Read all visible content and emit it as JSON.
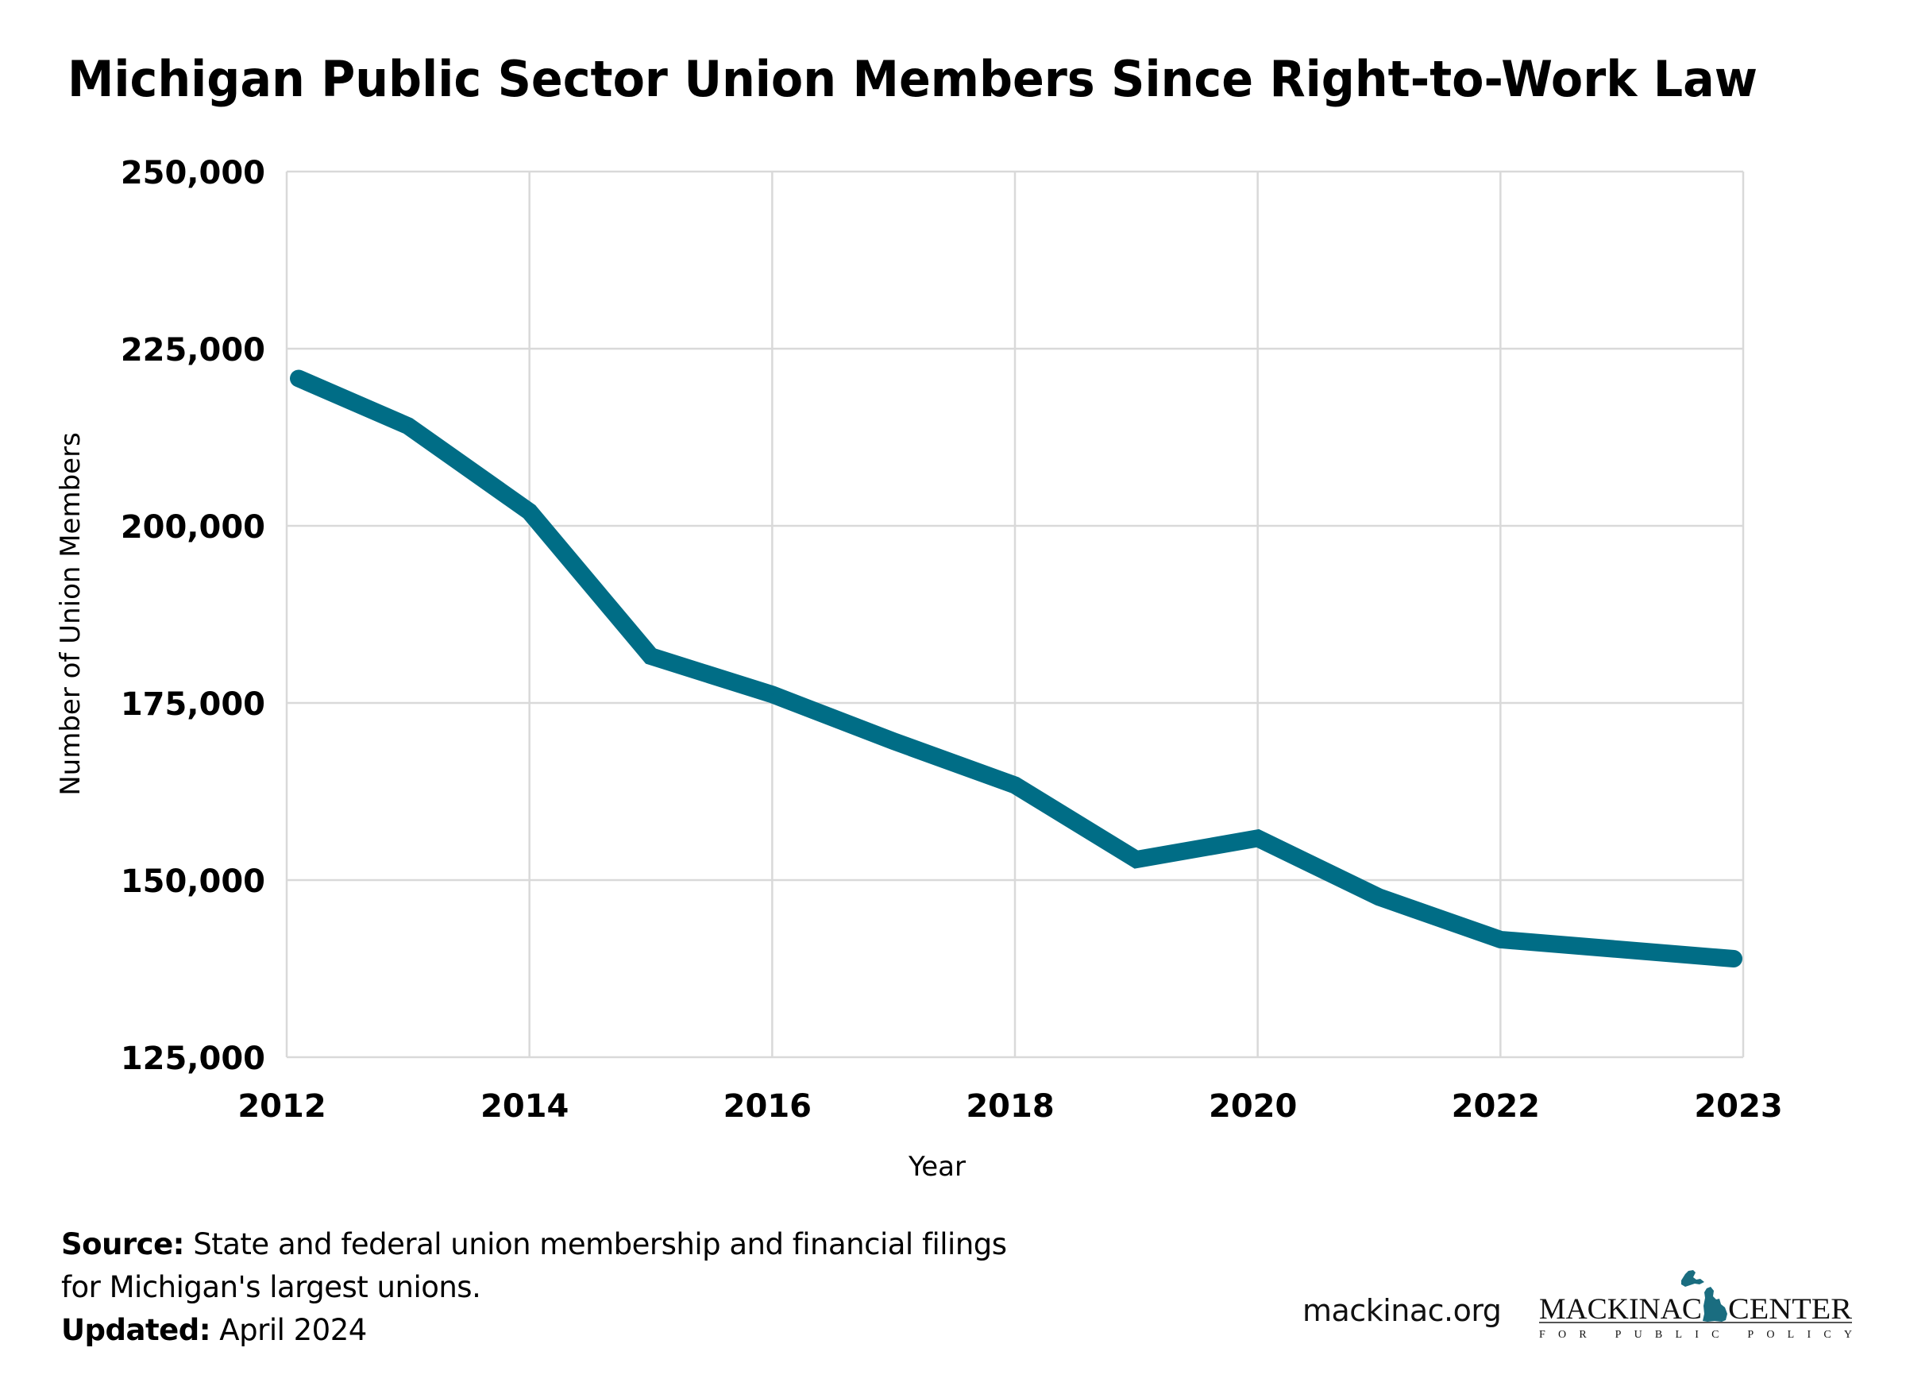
{
  "chart_data": {
    "type": "line",
    "title": "Michigan Public Sector Union Members Since Right-to-Work Law",
    "xlabel": "Year",
    "ylabel": "Number of Union Members",
    "ylim": [
      125000,
      250000
    ],
    "yticks": [
      250000,
      225000,
      200000,
      175000,
      150000,
      125000
    ],
    "ytick_labels": [
      "250,000",
      "225,000",
      "200,000",
      "175,000",
      "150,000",
      "125,000"
    ],
    "xtick_labels": [
      "2012",
      "2014",
      "2016",
      "2018",
      "2020",
      "2022",
      "2023"
    ],
    "grid": true,
    "legend": "none",
    "series": [
      {
        "name": "Public sector union members",
        "color": "#006d86",
        "x": [
          2012,
          2013,
          2014,
          2015,
          2016,
          2017,
          2018,
          2019,
          2020,
          2021,
          2022,
          2023
        ],
        "values": [
          220800,
          214100,
          202000,
          181600,
          176200,
          169600,
          163400,
          152900,
          155900,
          147600,
          141600,
          138900
        ]
      }
    ]
  },
  "footer": {
    "source_label": "Source:",
    "source_text": " State and federal union membership and financial filings",
    "source_text_2": "for Michigan's largest unions.",
    "updated_label": "Updated:",
    "updated_text": " April 2024"
  },
  "branding": {
    "website": "mackinac.org",
    "logo_word_1": "MACKINAC",
    "logo_word_2": "CENTER",
    "logo_tagline": "FOR PUBLIC POLICY",
    "logo_color": "#1a6d80"
  }
}
